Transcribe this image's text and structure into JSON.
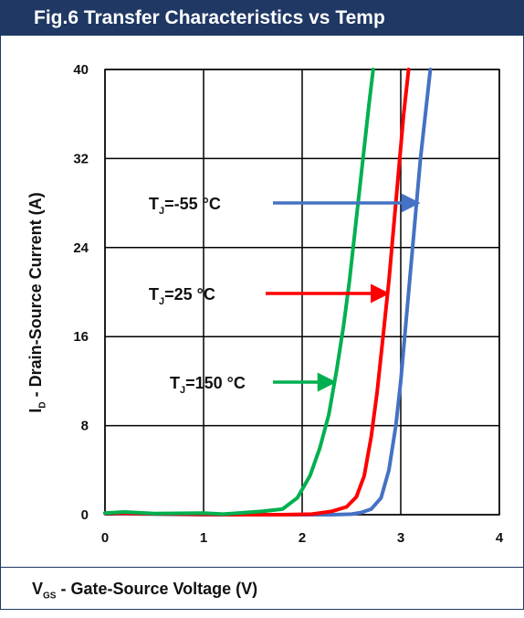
{
  "title": "Fig.6 Transfer Characteristics vs Temp",
  "chart_data": {
    "type": "line",
    "xlabel": {
      "main": "V",
      "sub": "GS",
      "rest": " - Gate-Source Voltage (V)"
    },
    "ylabel": {
      "main": "I",
      "sub": "D",
      "rest": " - Drain-Source Current (A)"
    },
    "xlim": [
      0,
      4
    ],
    "ylim": [
      0,
      40
    ],
    "xticks": [
      0,
      1,
      2,
      3,
      4
    ],
    "yticks": [
      0,
      8,
      16,
      24,
      32,
      40
    ],
    "grid": true,
    "series": [
      {
        "annotation": {
          "prefix": "T",
          "sub": "J",
          "rest": "=-55 °C"
        },
        "color": "#4472c4",
        "arrow_to": [
          3.18,
          28
        ],
        "points": [
          [
            0.1,
            0.1
          ],
          [
            0.5,
            0.05
          ],
          [
            1.0,
            0.0
          ],
          [
            1.5,
            0.0
          ],
          [
            2.0,
            0.0
          ],
          [
            2.3,
            0.0
          ],
          [
            2.5,
            0.05
          ],
          [
            2.6,
            0.2
          ],
          [
            2.7,
            0.5
          ],
          [
            2.8,
            1.5
          ],
          [
            2.88,
            4
          ],
          [
            2.95,
            8
          ],
          [
            3.0,
            12
          ],
          [
            3.05,
            17
          ],
          [
            3.1,
            22
          ],
          [
            3.15,
            27
          ],
          [
            3.2,
            32
          ],
          [
            3.25,
            36
          ],
          [
            3.3,
            40
          ]
        ]
      },
      {
        "annotation": {
          "prefix": "T",
          "sub": "J",
          "rest": "=25 °C"
        },
        "color": "#ff0000",
        "arrow_to": [
          2.87,
          19
        ],
        "points": [
          [
            0.0,
            0.15
          ],
          [
            0.3,
            0.1
          ],
          [
            0.8,
            0.05
          ],
          [
            1.3,
            0.0
          ],
          [
            1.8,
            0.0
          ],
          [
            2.1,
            0.05
          ],
          [
            2.3,
            0.3
          ],
          [
            2.45,
            0.7
          ],
          [
            2.55,
            1.6
          ],
          [
            2.63,
            3.5
          ],
          [
            2.7,
            7
          ],
          [
            2.76,
            11
          ],
          [
            2.82,
            16
          ],
          [
            2.88,
            21
          ],
          [
            2.93,
            26
          ],
          [
            2.98,
            31
          ],
          [
            3.03,
            36
          ],
          [
            3.08,
            40
          ]
        ]
      },
      {
        "annotation": {
          "prefix": "T",
          "sub": "J",
          "rest": "=150 °C"
        },
        "color": "#00b050",
        "arrow_to": [
          2.33,
          11.6
        ],
        "points": [
          [
            0.0,
            0.15
          ],
          [
            0.2,
            0.25
          ],
          [
            0.5,
            0.1
          ],
          [
            1.0,
            0.15
          ],
          [
            1.2,
            0.05
          ],
          [
            1.6,
            0.3
          ],
          [
            1.8,
            0.5
          ],
          [
            1.95,
            1.5
          ],
          [
            2.08,
            3.5
          ],
          [
            2.18,
            6
          ],
          [
            2.27,
            9
          ],
          [
            2.35,
            13
          ],
          [
            2.42,
            17
          ],
          [
            2.48,
            21
          ],
          [
            2.53,
            25
          ],
          [
            2.58,
            29
          ],
          [
            2.63,
            33
          ],
          [
            2.68,
            37
          ],
          [
            2.72,
            40
          ]
        ]
      }
    ]
  }
}
